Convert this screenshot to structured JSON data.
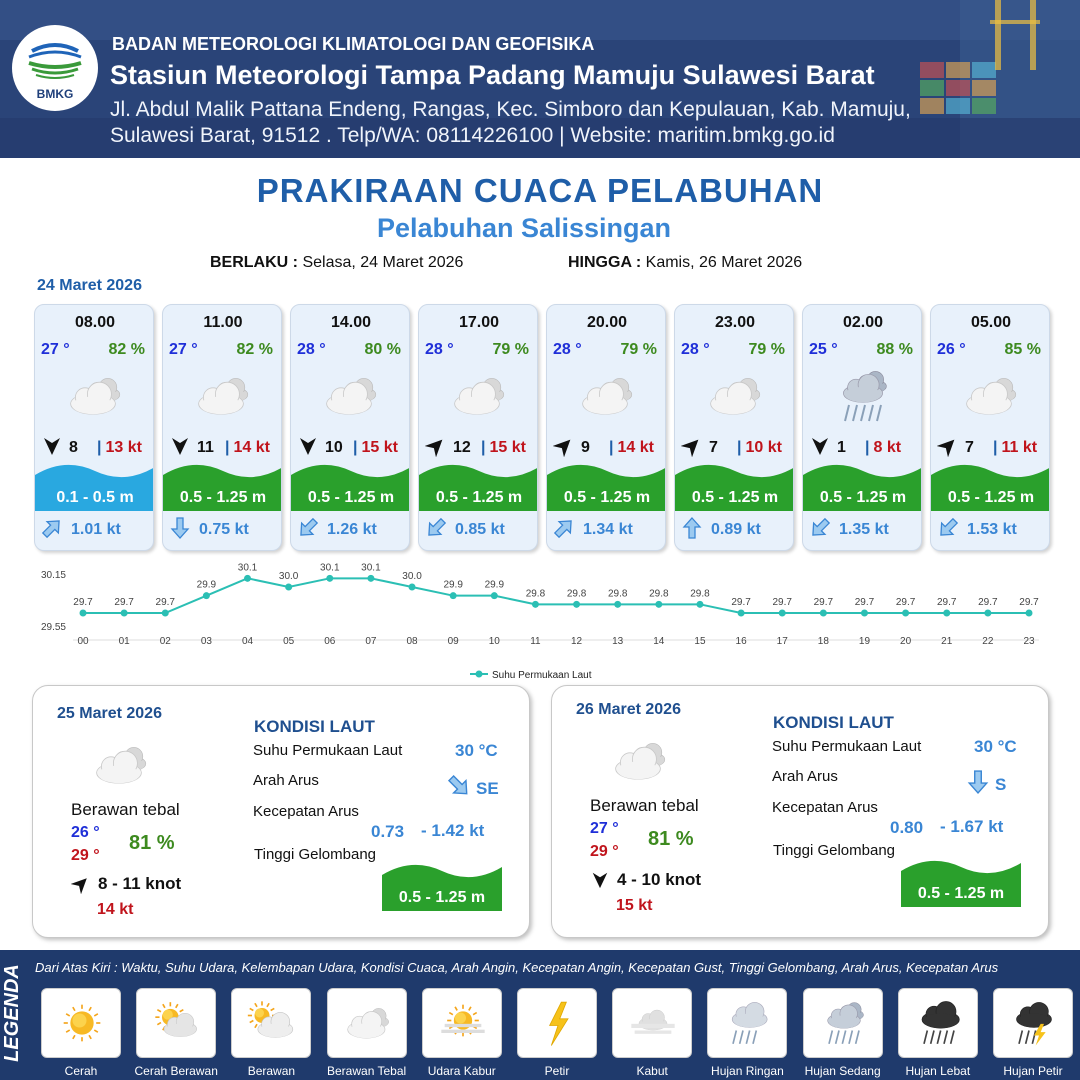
{
  "header": {
    "logo_text": "BMKG",
    "agency": "BADAN METEOROLOGI KLIMATOLOGI DAN GEOFISIKA",
    "station": "Stasiun Meteorologi Tampa Padang Mamuju Sulawesi Barat",
    "address1": "Jl. Abdul Malik Pattana Endeng, Rangas, Kec. Simboro dan Kepulauan, Kab. Mamuju,",
    "address2": "Sulawesi Barat, 91512 . Telp/WA: 08114226100 | Website: maritim.bmkg.go.id"
  },
  "title": "PRAKIRAAN CUACA PELABUHAN",
  "subtitle": "Pelabuhan Salissingan",
  "validity": {
    "from_label": "BERLAKU :",
    "from_value": "Selasa, 24 Maret 2026",
    "to_label": "HINGGA :",
    "to_value": "Kamis, 26 Maret 2026"
  },
  "day1_date": "24 Maret 2026",
  "hourly": [
    {
      "time": "08.00",
      "temp": "27 °",
      "hum": "82 %",
      "icon": "berawan-tebal",
      "wind_dir": "N",
      "wind": "8",
      "gust": "13 kt",
      "wave": "0.1 - 0.5 m",
      "wave_color": "#29a8e0",
      "cur_dir": "NE",
      "cur": "1.01 kt"
    },
    {
      "time": "11.00",
      "temp": "27 °",
      "hum": "82 %",
      "icon": "berawan-tebal",
      "wind_dir": "N",
      "wind": "11",
      "gust": "14 kt",
      "wave": "0.5 - 1.25 m",
      "wave_color": "#2aa02c",
      "cur_dir": "S",
      "cur": "0.75 kt"
    },
    {
      "time": "14.00",
      "temp": "28 °",
      "hum": "80 %",
      "icon": "berawan-tebal",
      "wind_dir": "N",
      "wind": "10",
      "gust": "15 kt",
      "wave": "0.5 - 1.25 m",
      "wave_color": "#2aa02c",
      "cur_dir": "SW",
      "cur": "1.26 kt"
    },
    {
      "time": "17.00",
      "temp": "28 °",
      "hum": "79 %",
      "icon": "berawan-tebal",
      "wind_dir": "SW",
      "wind": "12",
      "gust": "15 kt",
      "wave": "0.5 - 1.25 m",
      "wave_color": "#2aa02c",
      "cur_dir": "SW",
      "cur": "0.85 kt"
    },
    {
      "time": "20.00",
      "temp": "28 °",
      "hum": "79 %",
      "icon": "berawan-tebal",
      "wind_dir": "SW",
      "wind": "9",
      "gust": "14 kt",
      "wave": "0.5 - 1.25 m",
      "wave_color": "#2aa02c",
      "cur_dir": "NE",
      "cur": "1.34 kt"
    },
    {
      "time": "23.00",
      "temp": "28 °",
      "hum": "79 %",
      "icon": "berawan-tebal",
      "wind_dir": "SW",
      "wind": "7",
      "gust": "10 kt",
      "wave": "0.5 - 1.25 m",
      "wave_color": "#2aa02c",
      "cur_dir": "N",
      "cur": "0.89 kt"
    },
    {
      "time": "02.00",
      "temp": "25 °",
      "hum": "88 %",
      "icon": "hujan-sedang",
      "wind_dir": "N",
      "wind": "1",
      "gust": "8 kt",
      "wave": "0.5 - 1.25 m",
      "wave_color": "#2aa02c",
      "cur_dir": "SW",
      "cur": "1.35 kt"
    },
    {
      "time": "05.00",
      "temp": "26 °",
      "hum": "85 %",
      "icon": "berawan-tebal",
      "wind_dir": "SW",
      "wind": "7",
      "gust": "11 kt",
      "wave": "0.5 - 1.25 m",
      "wave_color": "#2aa02c",
      "cur_dir": "SW",
      "cur": "1.53 kt"
    }
  ],
  "chart_data": {
    "type": "line",
    "x": [
      "00",
      "01",
      "02",
      "03",
      "04",
      "05",
      "06",
      "07",
      "08",
      "09",
      "10",
      "11",
      "12",
      "13",
      "14",
      "15",
      "16",
      "17",
      "18",
      "19",
      "20",
      "21",
      "22",
      "23"
    ],
    "series": [
      {
        "name": "Suhu Permukaan Laut",
        "values": [
          29.7,
          29.7,
          29.7,
          29.9,
          30.1,
          30.0,
          30.1,
          30.1,
          30.0,
          29.9,
          29.9,
          29.8,
          29.8,
          29.8,
          29.8,
          29.8,
          29.7,
          29.7,
          29.7,
          29.7,
          29.7,
          29.7,
          29.7,
          29.7
        ],
        "color": "#2bbfb4"
      }
    ],
    "y_ticks": [
      "30.15",
      "29.55"
    ],
    "ylim": [
      29.55,
      30.15
    ],
    "legend": "bottom-center",
    "grid": false
  },
  "days": [
    {
      "date": "25 Maret 2026",
      "icon": "berawan-tebal",
      "cond": "Berawan tebal",
      "tlo": "26 °",
      "thi": "29 °",
      "hum": "81 %",
      "wind_dir": "SW",
      "wind": "8  - 11 knot",
      "gust": "14 kt",
      "kondisi": "KONDISI LAUT",
      "lbl_sst": "Suhu Permukaan Laut",
      "sst": "30 °C",
      "lbl_arah": "Arah Arus",
      "arah": "SE",
      "arah_dir": "SE",
      "lbl_kec": "Kecepatan Arus",
      "kec_lo": "0.73",
      "kec_hi": "- 1.42 kt",
      "lbl_tg": "Tinggi Gelombang",
      "wave": "0.5 - 1.25 m"
    },
    {
      "date": "26 Maret 2026",
      "icon": "berawan-tebal",
      "cond": "Berawan tebal",
      "tlo": "27 °",
      "thi": "29 °",
      "hum": "81 %",
      "wind_dir": "N",
      "wind": "4  - 10 knot",
      "gust": "15 kt",
      "kondisi": "KONDISI LAUT",
      "lbl_sst": "Suhu Permukaan Laut",
      "sst": "30 °C",
      "lbl_arah": "Arah Arus",
      "arah": "S",
      "arah_dir": "S",
      "lbl_kec": "Kecepatan Arus",
      "kec_lo": "0.80",
      "kec_hi": "- 1.67 kt",
      "lbl_tg": "Tinggi Gelombang",
      "wave": "0.5 - 1.25 m"
    }
  ],
  "legend": {
    "title": "LEGENDA",
    "description": "Dari Atas Kiri : Waktu, Suhu Udara, Kelembapan Udara, Kondisi Cuaca, Arah Angin, Kecepatan Angin, Kecepatan Gust, Tinggi Gelombang, Arah Arus, Kecepatan Arus",
    "items": [
      {
        "label": "Cerah",
        "icon": "cerah"
      },
      {
        "label": "Cerah Berawan",
        "icon": "cerah-berawan"
      },
      {
        "label": "Berawan",
        "icon": "berawan"
      },
      {
        "label": "Berawan Tebal",
        "icon": "berawan-tebal"
      },
      {
        "label": "Udara Kabur",
        "icon": "udara-kabur"
      },
      {
        "label": "Petir",
        "icon": "petir"
      },
      {
        "label": "Kabut",
        "icon": "kabut"
      },
      {
        "label": "Hujan Ringan",
        "icon": "hujan-ringan"
      },
      {
        "label": "Hujan Sedang",
        "icon": "hujan-sedang"
      },
      {
        "label": "Hujan Lebat",
        "icon": "hujan-lebat"
      },
      {
        "label": "Hujan Petir",
        "icon": "hujan-petir"
      }
    ]
  }
}
